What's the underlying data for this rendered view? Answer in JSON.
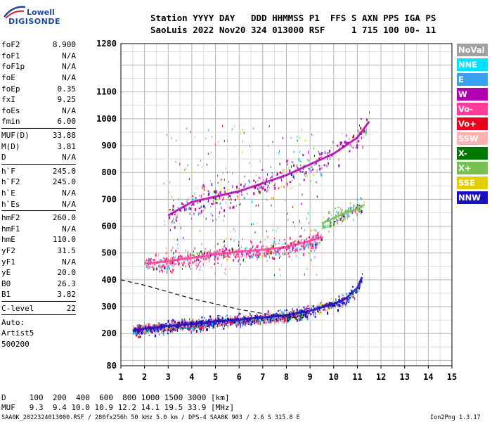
{
  "logo": {
    "line1": "Lowell",
    "line2": "DIGISONDE"
  },
  "header": {
    "line1": "Station YYYY DAY   DDD HHMMSS P1  FFS S AXN PPS IGA PS",
    "line2": "SaoLuis 2022 Nov20 324 013000 RSF     1 715 100 00- 11"
  },
  "params": {
    "group1": [
      {
        "label": "foF2",
        "value": "8.900"
      },
      {
        "label": "foF1",
        "value": "N/A"
      },
      {
        "label": "foF1p",
        "value": "N/A"
      },
      {
        "label": "foE",
        "value": "N/A"
      },
      {
        "label": "foEp",
        "value": "0.35"
      },
      {
        "label": "fxI",
        "value": "9.25"
      },
      {
        "label": "foEs",
        "value": "N/A"
      },
      {
        "label": "fmin",
        "value": "6.00"
      }
    ],
    "group2": [
      {
        "label": "MUF(D)",
        "value": "33.88"
      },
      {
        "label": "M(D)",
        "value": "3.81"
      },
      {
        "label": "D",
        "value": "N/A"
      }
    ],
    "group3": [
      {
        "label": "h`F",
        "value": "245.0"
      },
      {
        "label": "h`F2",
        "value": "245.0"
      },
      {
        "label": "h`E",
        "value": "N/A"
      },
      {
        "label": "h`Es",
        "value": "N/A"
      }
    ],
    "group4": [
      {
        "label": "hmF2",
        "value": "260.0"
      },
      {
        "label": "hmF1",
        "value": "N/A"
      },
      {
        "label": "hmE",
        "value": "110.0"
      },
      {
        "label": "yF2",
        "value": "31.5"
      },
      {
        "label": "yF1",
        "value": "N/A"
      },
      {
        "label": "yE",
        "value": "20.0"
      },
      {
        "label": "B0",
        "value": "26.3"
      },
      {
        "label": "B1",
        "value": "3.82"
      }
    ],
    "clevel": {
      "label": "C-level",
      "value": "22"
    },
    "auto": [
      "Auto:",
      "Artist5",
      "500200"
    ]
  },
  "legend": [
    {
      "label": "NoVal",
      "color": "#a0a0a0"
    },
    {
      "label": "NNE",
      "color": "#00e0ff"
    },
    {
      "label": "E",
      "color": "#3aa0f0"
    },
    {
      "label": "W",
      "color": "#b000b0"
    },
    {
      "label": "Vo-",
      "color": "#ff3c9c"
    },
    {
      "label": "Vo+",
      "color": "#e8001c"
    },
    {
      "label": "SSW",
      "color": "#ffb0b0"
    },
    {
      "label": "X-",
      "color": "#007800"
    },
    {
      "label": "X+",
      "color": "#78c050"
    },
    {
      "label": "SSE",
      "color": "#e0d000"
    },
    {
      "label": "NNW",
      "color": "#1a10c0"
    }
  ],
  "footer": {
    "dist": "D     100  200  400  600  800 1000 1500 3000 [km]",
    "muf": "MUF   9.3  9.4 10.0 10.9 12.2 14.1 19.5 33.9 [MHz]",
    "file": "SAA0K_2022324013000.RSF / 280fx256h 50 kHz 5.0 km / DPS-4 SAA0K 903 / 2.6 S 315.8 E",
    "version": "Ion2Png 1.3.17"
  },
  "chart_data": {
    "type": "scatter",
    "title": "",
    "xlabel": "",
    "ylabel": "",
    "xlim": [
      1,
      15
    ],
    "ylim": [
      80,
      1280
    ],
    "x_ticks": [
      1,
      2,
      3,
      4,
      5,
      6,
      7,
      8,
      9,
      10,
      11,
      12,
      13,
      14,
      15
    ],
    "y_ticks": [
      80,
      200,
      300,
      400,
      500,
      600,
      700,
      800,
      900,
      1000,
      1100,
      1280
    ],
    "grid": true,
    "legend_position": "right",
    "traces": [
      {
        "name": "F2 O-trace (lower)",
        "color": "#ff3c9c",
        "x": [
          1.5,
          2,
          3,
          4,
          5,
          6,
          7,
          8,
          8.5,
          8.9
        ],
        "y": [
          215,
          222,
          230,
          238,
          245,
          252,
          258,
          265,
          275,
          290
        ]
      },
      {
        "name": "F2 X-trace (lower)",
        "color": "#1a10c0",
        "x": [
          1.5,
          2,
          3,
          4,
          5,
          6,
          7,
          8,
          9,
          10,
          10.5,
          11,
          11.2
        ],
        "y": [
          210,
          218,
          228,
          235,
          245,
          252,
          260,
          268,
          285,
          310,
          330,
          370,
          410
        ]
      },
      {
        "name": "F2 2nd-hop",
        "color": "#ff3c9c",
        "x": [
          2,
          3,
          4,
          5,
          6,
          7,
          8,
          9,
          9.5
        ],
        "y": [
          460,
          470,
          482,
          495,
          505,
          512,
          522,
          545,
          560
        ]
      },
      {
        "name": "F2 3rd-hop",
        "color": "#b000b0",
        "x": [
          3,
          4,
          5,
          6,
          7,
          8,
          9,
          10,
          11,
          11.5
        ],
        "y": [
          640,
          690,
          710,
          730,
          760,
          790,
          830,
          870,
          930,
          990
        ]
      },
      {
        "name": "high-hop group",
        "color": "#78c050",
        "x": [
          9.5,
          10,
          10.5,
          11,
          11.3
        ],
        "y": [
          610,
          630,
          650,
          665,
          680
        ]
      }
    ],
    "profile_curve": {
      "x": [
        1,
        2,
        3,
        4,
        5,
        6,
        7,
        8,
        8.5,
        8.9
      ],
      "y": [
        400,
        380,
        355,
        330,
        310,
        290,
        275,
        262,
        258,
        260
      ]
    }
  }
}
